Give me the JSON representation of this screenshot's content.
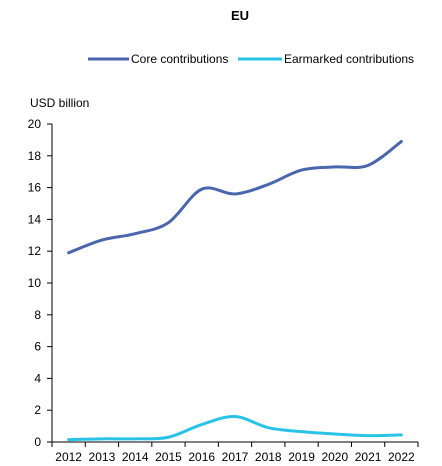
{
  "chart_data": {
    "type": "line",
    "title": "EU",
    "ylabel": "USD billion",
    "xlabel": "",
    "x": [
      "2012",
      "2013",
      "2014",
      "2015",
      "2016",
      "2017",
      "2018",
      "2019",
      "2020",
      "2021",
      "2022"
    ],
    "ylim": [
      0,
      20
    ],
    "yticks": [
      0,
      2,
      4,
      6,
      8,
      10,
      12,
      14,
      16,
      18,
      20
    ],
    "grid": false,
    "legend_position": "top",
    "series": [
      {
        "name": "Core contributions",
        "color": "#4a66ac",
        "values": [
          11.9,
          12.7,
          13.1,
          13.8,
          15.9,
          15.6,
          16.2,
          17.1,
          17.3,
          17.4,
          18.9
        ]
      },
      {
        "name": "Earmarked contributions",
        "color": "#2ac3e8",
        "values": [
          0.15,
          0.2,
          0.2,
          0.3,
          1.1,
          1.6,
          0.9,
          0.65,
          0.5,
          0.4,
          0.45
        ]
      }
    ]
  }
}
